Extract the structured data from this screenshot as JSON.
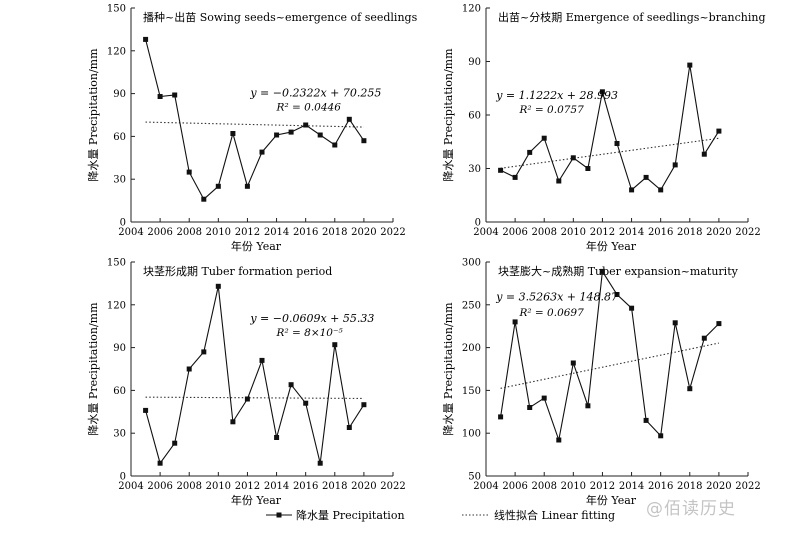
{
  "figure": {
    "legend": {
      "precipitation_label": "降水量 Precipitation",
      "fit_label": "线性拟合 Linear fitting"
    },
    "watermark": "@佰读历史",
    "colors": {
      "line": "#111111",
      "marker": "#111111",
      "fit": "#333333",
      "axis": "#222222"
    }
  },
  "chart_data": [
    {
      "type": "line",
      "title": "播种~出苗 Sowing seeds~emergence of seedlings",
      "xlabel": "年份 Year",
      "ylabel": "降水量 Precipitation/mm",
      "xlim": [
        2004,
        2022
      ],
      "ylim": [
        0,
        150
      ],
      "xticks": [
        2004,
        2006,
        2008,
        2010,
        2012,
        2014,
        2016,
        2018,
        2020,
        2022
      ],
      "yticks": [
        0,
        30,
        60,
        90,
        120,
        150
      ],
      "x": [
        2005,
        2006,
        2007,
        2008,
        2009,
        2010,
        2011,
        2012,
        2013,
        2014,
        2015,
        2016,
        2017,
        2018,
        2019,
        2020
      ],
      "values": [
        128,
        88,
        89,
        35,
        16,
        25,
        62,
        25,
        49,
        61,
        63,
        68,
        61,
        54,
        72,
        57
      ],
      "fit": {
        "slope": -0.2322,
        "intercept": 70.255,
        "x_range": [
          2005,
          2020
        ]
      },
      "equation": "y = −0.2322x + 70.255",
      "r2_text": "R² = 0.0446",
      "equation_pos": [
        2012.2,
        88
      ],
      "r2_pos": [
        2014.0,
        78
      ]
    },
    {
      "type": "line",
      "title": "出苗~分枝期 Emergence of seedlings~branching",
      "xlabel": "年份 Year",
      "ylabel": "降水量 Precipitation/mm",
      "xlim": [
        2004,
        2022
      ],
      "ylim": [
        0,
        120
      ],
      "xticks": [
        2004,
        2006,
        2008,
        2010,
        2012,
        2014,
        2016,
        2018,
        2020,
        2022
      ],
      "yticks": [
        0,
        30,
        60,
        90,
        120
      ],
      "x": [
        2005,
        2006,
        2007,
        2008,
        2009,
        2010,
        2011,
        2012,
        2013,
        2014,
        2015,
        2016,
        2017,
        2018,
        2019,
        2020
      ],
      "values": [
        29,
        25,
        39,
        47,
        23,
        36,
        30,
        73,
        44,
        18,
        25,
        18,
        32,
        88,
        38,
        51
      ],
      "fit": {
        "slope": 1.1222,
        "intercept": 28.993,
        "x_range": [
          2005,
          2020
        ]
      },
      "equation": "y = 1.1222x + 28.993",
      "r2_text": "R² = 0.0757",
      "equation_pos": [
        2004.7,
        69
      ],
      "r2_pos": [
        2006.3,
        61
      ]
    },
    {
      "type": "line",
      "title": "块茎形成期 Tuber formation period",
      "xlabel": "年份 Year",
      "ylabel": "降水量 Precipitation/mm",
      "xlim": [
        2004,
        2022
      ],
      "ylim": [
        0,
        150
      ],
      "xticks": [
        2004,
        2006,
        2008,
        2010,
        2012,
        2014,
        2016,
        2018,
        2020,
        2022
      ],
      "yticks": [
        0,
        30,
        60,
        90,
        120,
        150
      ],
      "x": [
        2005,
        2006,
        2007,
        2008,
        2009,
        2010,
        2011,
        2012,
        2013,
        2014,
        2015,
        2016,
        2017,
        2018,
        2019,
        2020
      ],
      "values": [
        46,
        9,
        23,
        75,
        87,
        133,
        38,
        54,
        81,
        27,
        64,
        51,
        9,
        92,
        34,
        50
      ],
      "fit": {
        "slope": -0.0609,
        "intercept": 55.33,
        "x_range": [
          2005,
          2020
        ]
      },
      "equation": "y = −0.0609x + 55.33",
      "r2_text": "R² = 8×10⁻⁵",
      "equation_pos": [
        2012.2,
        108
      ],
      "r2_pos": [
        2014.0,
        98
      ]
    },
    {
      "type": "line",
      "title": "块茎膨大~成熟期 Tuber expansion~maturity",
      "xlabel": "年份 Year",
      "ylabel": "降水量 Precipitation/mm",
      "xlim": [
        2004,
        2022
      ],
      "ylim": [
        50,
        300
      ],
      "xticks": [
        2004,
        2006,
        2008,
        2010,
        2012,
        2014,
        2016,
        2018,
        2020,
        2022
      ],
      "yticks": [
        50,
        100,
        150,
        200,
        250,
        300
      ],
      "x": [
        2005,
        2006,
        2007,
        2008,
        2009,
        2010,
        2011,
        2012,
        2013,
        2014,
        2015,
        2016,
        2017,
        2018,
        2019,
        2020
      ],
      "values": [
        119,
        230,
        130,
        141,
        92,
        182,
        132,
        289,
        262,
        246,
        115,
        97,
        229,
        152,
        211,
        228
      ],
      "fit": {
        "slope": 3.5263,
        "intercept": 148.87,
        "x_range": [
          2005,
          2020
        ]
      },
      "equation": "y = 3.5263x + 148.87",
      "r2_text": "R² = 0.0697",
      "equation_pos": [
        2004.7,
        255
      ],
      "r2_pos": [
        2006.3,
        237
      ]
    }
  ]
}
